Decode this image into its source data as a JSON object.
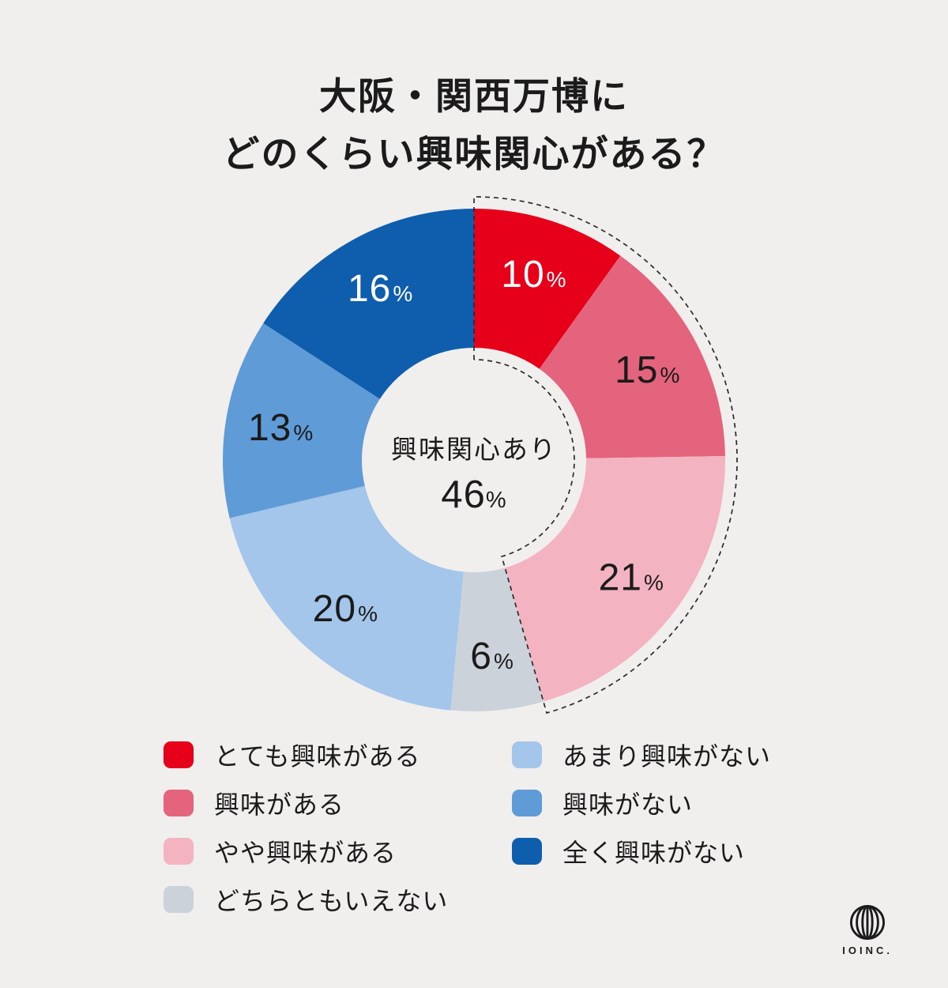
{
  "title": {
    "line1": "大阪・関西万博に",
    "line2": "どのくらい興味関心がある？"
  },
  "chart_data": {
    "type": "pie",
    "subtype": "donut",
    "title": "大阪・関西万博にどのくらい興味関心がある？",
    "direction": "clockwise",
    "start_angle_deg": 0,
    "segments": [
      {
        "label": "とても興味がある",
        "value_pct": 10,
        "color": "#e60019",
        "text_color": "#ffffff"
      },
      {
        "label": "興味がある",
        "value_pct": 15,
        "color": "#e3647c",
        "text_color": "#1b1b1b"
      },
      {
        "label": "やや興味がある",
        "value_pct": 21,
        "color": "#f4b3c1",
        "text_color": "#1b1b1b"
      },
      {
        "label": "どちらともいえない",
        "value_pct": 6,
        "color": "#ccd2d9",
        "text_color": "#1b1b1b"
      },
      {
        "label": "あまり興味がない",
        "value_pct": 20,
        "color": "#a3c6ea",
        "text_color": "#1b1b1b"
      },
      {
        "label": "興味がない",
        "value_pct": 13,
        "color": "#5f9bd6",
        "text_color": "#1b1b1b"
      },
      {
        "label": "全く興味がない",
        "value_pct": 16,
        "color": "#0f5dad",
        "text_color": "#ffffff"
      }
    ],
    "unit": "%",
    "center_label": {
      "line1": "興味関心あり",
      "value": "46",
      "unit": "%"
    },
    "highlight": {
      "label": "興味関心あり",
      "value_pct": 46,
      "covers": [
        "とても興味がある",
        "興味がある",
        "やや興味がある"
      ],
      "style": "dashed-outline"
    }
  },
  "legend": {
    "columns": [
      {
        "items": [
          {
            "label": "とても興味がある",
            "color": "#e60019"
          },
          {
            "label": "興味がある",
            "color": "#e3647c"
          },
          {
            "label": "やや興味がある",
            "color": "#f4b3c1"
          },
          {
            "label": "どちらともいえない",
            "color": "#ccd2d9"
          }
        ]
      },
      {
        "items": [
          {
            "label": "あまり興味がない",
            "color": "#a3c6ea"
          },
          {
            "label": "興味がない",
            "color": "#5f9bd6"
          },
          {
            "label": "全く興味がない",
            "color": "#0f5dad"
          }
        ]
      }
    ]
  },
  "footer": {
    "logo_text": "IOINC."
  },
  "colors": {
    "background": "#f0efee",
    "text": "#1b1b1b",
    "dashed_outline": "#2a2a2a"
  }
}
